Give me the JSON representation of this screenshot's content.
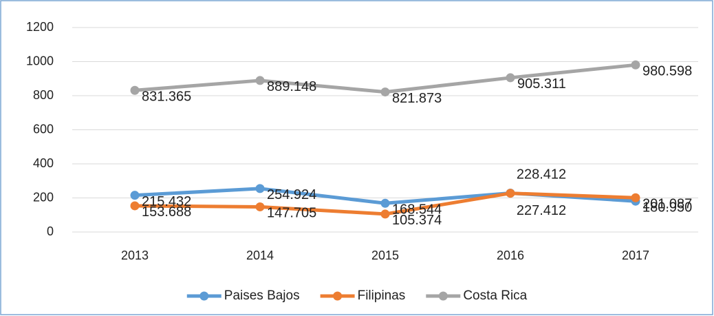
{
  "chart_data": {
    "type": "line",
    "categories": [
      "2013",
      "2014",
      "2015",
      "2016",
      "2017"
    ],
    "series": [
      {
        "name": "Paises Bajos",
        "color": "#5b9bd5",
        "values": [
          215.432,
          254.924,
          168.544,
          228.412,
          180.95
        ],
        "value_labels": [
          "215.432",
          "254.924",
          "168.544",
          "228.412",
          "180.950"
        ]
      },
      {
        "name": "Filipinas",
        "color": "#ed7d31",
        "values": [
          153.688,
          147.705,
          105.374,
          227.412,
          201.087
        ],
        "value_labels": [
          "153.688",
          "147.705",
          "105.374",
          "227.412",
          "201.087"
        ]
      },
      {
        "name": "Costa Rica",
        "color": "#a5a5a5",
        "values": [
          831.365,
          889.148,
          821.873,
          905.311,
          980.598
        ],
        "value_labels": [
          "831.365",
          "889.148",
          "821.873",
          "905.311",
          "980.598"
        ]
      }
    ],
    "ylim": [
      0,
      1200
    ],
    "yticks": [
      0,
      200,
      400,
      600,
      800,
      1000,
      1200
    ],
    "grid": true,
    "legend": "bottom"
  }
}
